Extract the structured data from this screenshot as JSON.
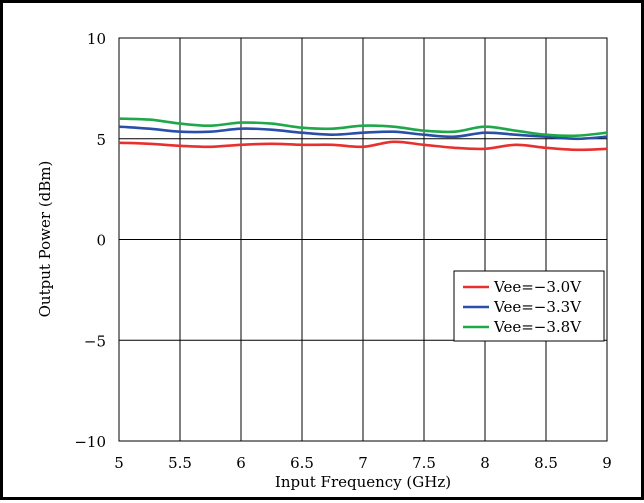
{
  "chart_data": {
    "type": "line",
    "title": "",
    "xlabel": "Input Frequency (GHz)",
    "ylabel": "Output Power (dBm)",
    "xlim": [
      5,
      9
    ],
    "ylim": [
      -10,
      10
    ],
    "xticks": [
      5,
      5.5,
      6,
      6.5,
      7,
      7.5,
      8,
      8.5,
      9
    ],
    "xtick_labels": [
      "5",
      "5.5",
      "6",
      "6.5",
      "7",
      "7.5",
      "8",
      "8.5",
      "9"
    ],
    "yticks": [
      -10,
      -5,
      0,
      5,
      10
    ],
    "ytick_labels": [
      "−10",
      "−5",
      "0",
      "5",
      "10"
    ],
    "grid": true,
    "legend_position": "right, lower middle",
    "x": [
      5.0,
      5.25,
      5.5,
      5.75,
      6.0,
      6.25,
      6.5,
      6.75,
      7.0,
      7.25,
      7.5,
      7.75,
      8.0,
      8.25,
      8.5,
      8.75,
      9.0
    ],
    "series": [
      {
        "name": "Vee=−3.0V",
        "color": "#e8312e",
        "values": [
          4.8,
          4.75,
          4.65,
          4.6,
          4.7,
          4.75,
          4.7,
          4.7,
          4.6,
          4.85,
          4.7,
          4.55,
          4.5,
          4.7,
          4.55,
          4.45,
          4.5
        ]
      },
      {
        "name": "Vee=−3.3V",
        "color": "#2a4fa8",
        "values": [
          5.6,
          5.5,
          5.35,
          5.35,
          5.5,
          5.45,
          5.3,
          5.2,
          5.3,
          5.35,
          5.2,
          5.1,
          5.3,
          5.2,
          5.1,
          5.0,
          5.1
        ]
      },
      {
        "name": "Vee=−3.8V",
        "color": "#1fa84a",
        "values": [
          6.0,
          5.95,
          5.75,
          5.65,
          5.8,
          5.75,
          5.55,
          5.5,
          5.65,
          5.6,
          5.4,
          5.35,
          5.6,
          5.4,
          5.2,
          5.15,
          5.3
        ]
      }
    ]
  }
}
